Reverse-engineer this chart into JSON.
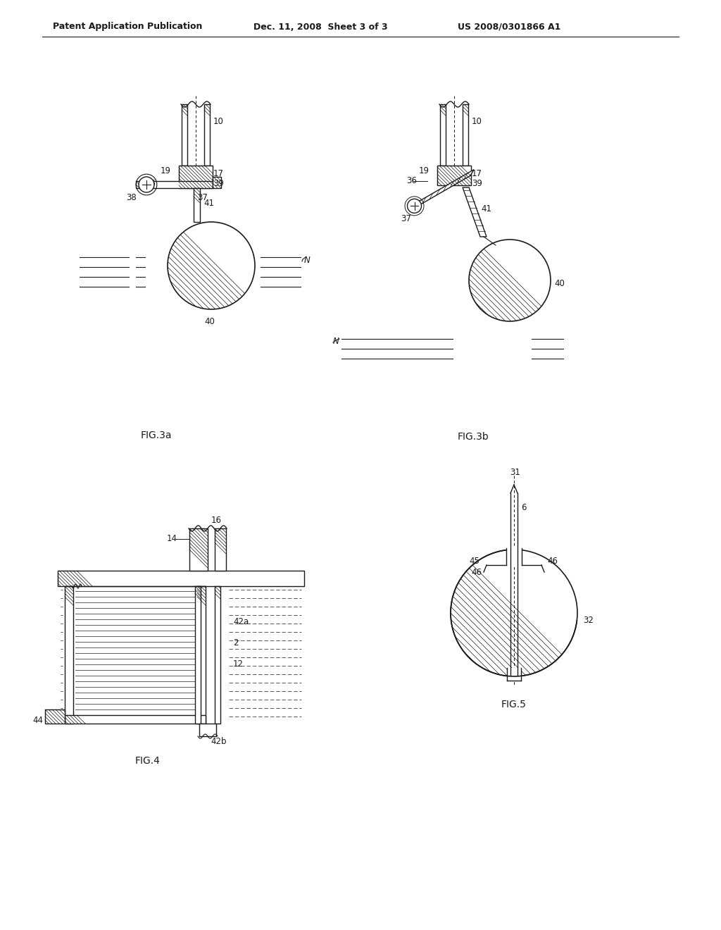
{
  "bg_color": "#ffffff",
  "header_left": "Patent Application Publication",
  "header_mid": "Dec. 11, 2008  Sheet 3 of 3",
  "header_right": "US 2008/0301866 A1",
  "fig3a_label": "FIG.3a",
  "fig3b_label": "FIG.3b",
  "fig4_label": "FIG.4",
  "fig5_label": "FIG.5",
  "line_color": "#1a1a1a",
  "text_color": "#1a1a1a"
}
